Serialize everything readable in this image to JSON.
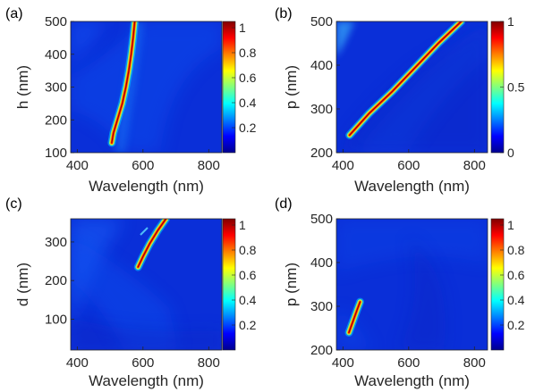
{
  "chart_data": [
    {
      "type": "heatmap",
      "panel_label": "(a)",
      "xlabel": "Wavelength (nm)",
      "ylabel": "h (nm)",
      "xlim": [
        380,
        840
      ],
      "ylim": [
        100,
        500
      ],
      "xticks": [
        400,
        600,
        800
      ],
      "yticks": [
        100,
        200,
        300,
        400,
        500
      ],
      "color_range": [
        0,
        1.05
      ],
      "colorbar_ticks": [
        0.2,
        0.4,
        0.6,
        0.8,
        1
      ],
      "resonance_ridge": [
        [
          505,
          130
        ],
        [
          510,
          160
        ],
        [
          522,
          200
        ],
        [
          537,
          250
        ],
        [
          548,
          300
        ],
        [
          557,
          350
        ],
        [
          564,
          400
        ],
        [
          570,
          450
        ],
        [
          575,
          500
        ]
      ]
    },
    {
      "type": "heatmap",
      "panel_label": "(b)",
      "xlabel": "Wavelength (nm)",
      "ylabel": "p (nm)",
      "xlim": [
        380,
        840
      ],
      "ylim": [
        200,
        500
      ],
      "xticks": [
        400,
        600,
        800
      ],
      "yticks": [
        200,
        300,
        400,
        500
      ],
      "color_range": [
        0,
        1
      ],
      "colorbar_ticks": [
        0,
        0.5,
        1
      ],
      "resonance_ridge": [
        [
          420,
          240
        ],
        [
          480,
          290
        ],
        [
          550,
          340
        ],
        [
          620,
          395
        ],
        [
          690,
          450
        ],
        [
          760,
          500
        ]
      ]
    },
    {
      "type": "heatmap",
      "panel_label": "(c)",
      "xlabel": "Wavelength (nm)",
      "ylabel": "d (nm)",
      "xlim": [
        380,
        840
      ],
      "ylim": [
        20,
        360
      ],
      "xticks": [
        400,
        600,
        800
      ],
      "yticks": [
        100,
        200,
        300
      ],
      "color_range": [
        0,
        1.05
      ],
      "colorbar_ticks": [
        0.2,
        0.4,
        0.6,
        0.8,
        1
      ],
      "resonance_ridge": [
        [
          585,
          235
        ],
        [
          600,
          262
        ],
        [
          620,
          295
        ],
        [
          645,
          330
        ],
        [
          670,
          360
        ]
      ]
    },
    {
      "type": "heatmap",
      "panel_label": "(d)",
      "xlabel": "Wavelength (nm)",
      "ylabel": "p (nm)",
      "xlim": [
        380,
        840
      ],
      "ylim": [
        200,
        500
      ],
      "xticks": [
        400,
        600,
        800
      ],
      "yticks": [
        200,
        300,
        400,
        500
      ],
      "color_range": [
        0,
        1.05
      ],
      "colorbar_ticks": [
        0.2,
        0.4,
        0.6,
        0.8,
        1
      ],
      "resonance_ridge": [
        [
          418,
          240
        ],
        [
          430,
          265
        ],
        [
          442,
          290
        ],
        [
          452,
          310
        ]
      ]
    }
  ]
}
